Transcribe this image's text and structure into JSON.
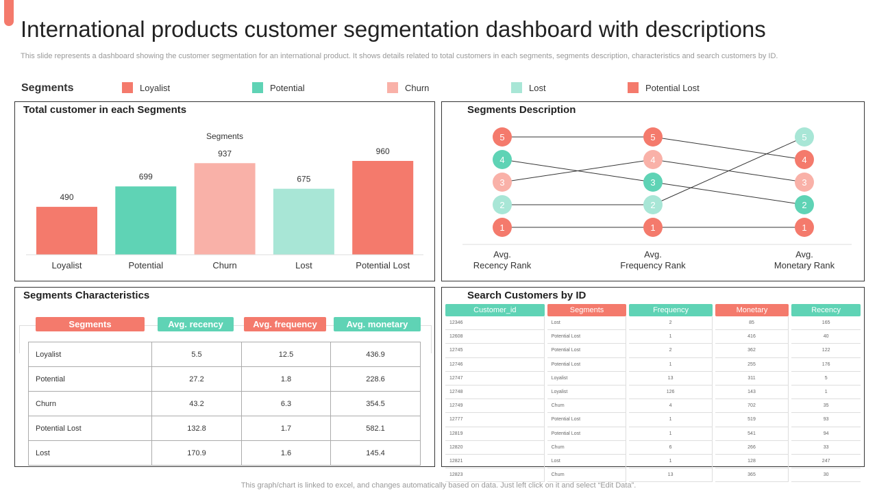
{
  "title": "International products customer segmentation dashboard with descriptions",
  "subtitle": "This slide represents a dashboard showing the customer segmentation for an international product. It shows details related to total customers in each segments, segments description, characteristics and search customers by ID.",
  "segments_label": "Segments",
  "colors": {
    "Loyalist": "#f47a6c",
    "Potential": "#5fd3b5",
    "Churn": "#f9b1a8",
    "Lost": "#a8e6d6",
    "Potential Lost": "#f47a6c"
  },
  "legend": [
    "Loyalist",
    "Potential",
    "Churn",
    "Lost",
    "Potential Lost"
  ],
  "bar_panel": {
    "title": "Total customer in each Segments"
  },
  "chart_data": {
    "type": "bar",
    "title": "Segments",
    "categories": [
      "Loyalist",
      "Potential",
      "Churn",
      "Lost",
      "Potential Lost"
    ],
    "values": [
      490,
      699,
      937,
      675,
      960
    ],
    "ylim": [
      0,
      1000
    ],
    "grid": false
  },
  "desc_panel": {
    "title": "Segments Description",
    "columns": [
      {
        "label1": "Avg.",
        "label2": "Recency Rank",
        "dots": [
          {
            "rank": 5,
            "segment": "Loyalist"
          },
          {
            "rank": 4,
            "segment": "Potential"
          },
          {
            "rank": 3,
            "segment": "Churn"
          },
          {
            "rank": 2,
            "segment": "Lost"
          },
          {
            "rank": 1,
            "segment": "Potential Lost"
          }
        ]
      },
      {
        "label1": "Avg.",
        "label2": "Frequency Rank",
        "dots": [
          {
            "rank": 5,
            "segment": "Loyalist"
          },
          {
            "rank": 4,
            "segment": "Churn"
          },
          {
            "rank": 3,
            "segment": "Potential"
          },
          {
            "rank": 2,
            "segment": "Lost"
          },
          {
            "rank": 1,
            "segment": "Potential Lost"
          }
        ]
      },
      {
        "label1": "Avg.",
        "label2": "Monetary Rank",
        "dots": [
          {
            "rank": 5,
            "segment": "Lost"
          },
          {
            "rank": 4,
            "segment": "Loyalist"
          },
          {
            "rank": 3,
            "segment": "Churn"
          },
          {
            "rank": 2,
            "segment": "Potential"
          },
          {
            "rank": 1,
            "segment": "Potential Lost"
          }
        ]
      }
    ]
  },
  "char_panel": {
    "title": "Segments Characteristics",
    "headers": [
      "Segments",
      "Avg. recency",
      "Avg. frequency",
      "Avg. monetary"
    ],
    "rows": [
      [
        "Loyalist",
        "5.5",
        "12.5",
        "436.9"
      ],
      [
        "Potential",
        "27.2",
        "1.8",
        "228.6"
      ],
      [
        "Churn",
        "43.2",
        "6.3",
        "354.5"
      ],
      [
        "Potential Lost",
        "132.8",
        "1.7",
        "582.1"
      ],
      [
        "Lost",
        "170.9",
        "1.6",
        "145.4"
      ]
    ]
  },
  "search_panel": {
    "title": "Search Customers by ID",
    "headers": [
      "Customer_id",
      "Segments",
      "Frequency",
      "Monetary",
      "Recency"
    ],
    "rows": [
      [
        "12346",
        "Lost",
        "2",
        "85",
        "165"
      ],
      [
        "12608",
        "Potential Lost",
        "1",
        "416",
        "40"
      ],
      [
        "12745",
        "Potential Lost",
        "2",
        "362",
        "122"
      ],
      [
        "12746",
        "Potential Lost",
        "1",
        "255",
        "176"
      ],
      [
        "12747",
        "Loyalist",
        "13",
        "311",
        "5"
      ],
      [
        "12748",
        "Loyalist",
        "126",
        "143",
        "1"
      ],
      [
        "12749",
        "Churn",
        "4",
        "702",
        "35"
      ],
      [
        "12777",
        "Potential Lost",
        "1",
        "519",
        "93"
      ],
      [
        "12819",
        "Potential Lost",
        "1",
        "541",
        "94"
      ],
      [
        "12820",
        "Churn",
        "6",
        "266",
        "33"
      ],
      [
        "12821",
        "Lost",
        "1",
        "128",
        "247"
      ],
      [
        "12823",
        "Churn",
        "13",
        "365",
        "30"
      ]
    ]
  },
  "footer": "This graph/chart is linked to excel, and changes automatically based on data. Just left click on it and select “Edit Data”."
}
